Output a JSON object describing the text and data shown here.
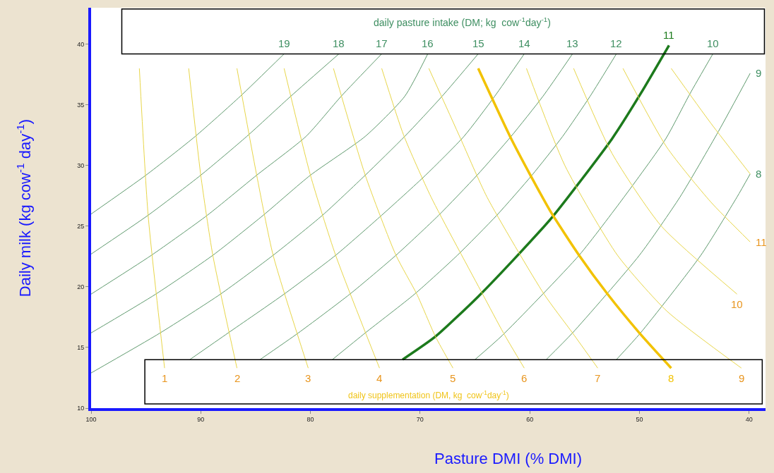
{
  "chart_data": {
    "type": "line",
    "xlabel": "Pasture DMI (% DMI)",
    "ylabel": "Daily milk (kg cow$^{-1}$ day$^{-1}$)",
    "annotations": [
      "daily pasture intake (DM; kg  cow$^{-1}$day$^{-1}$)",
      "daily supplementation (DM, kg  cow$^{-1}$day$^{-1}$)"
    ],
    "xlim": [
      100,
      38.5
    ],
    "ylim": [
      10,
      43
    ],
    "xticks": [
      100,
      90,
      80,
      70,
      60,
      50,
      40
    ],
    "yticks": [
      10,
      15,
      20,
      25,
      30,
      35,
      40
    ],
    "grid": false,
    "legend": false,
    "marker": "none",
    "line_style": "solid",
    "series": [
      {
        "name": "19",
        "color": "#5f9a6e",
        "x": [
          100,
          95.0,
          90.5,
          86.4,
          82.4
        ],
        "values": [
          26.0,
          29.2,
          32.4,
          35.7,
          39.2
        ]
      },
      {
        "name": "18",
        "color": "#5f9a6e",
        "x": [
          100,
          94.8,
          90.0,
          85.8,
          81.8,
          77.4
        ],
        "values": [
          22.7,
          25.9,
          29.2,
          32.4,
          35.7,
          39.2
        ]
      },
      {
        "name": "17",
        "color": "#5f9a6e",
        "x": [
          100,
          94.5,
          89.4,
          84.9,
          80.4,
          77.2,
          73.5
        ],
        "values": [
          19.4,
          22.6,
          25.9,
          29.2,
          32.4,
          35.7,
          39.2
        ]
      },
      {
        "name": "16",
        "color": "#5f9a6e",
        "x": [
          100,
          94.1,
          88.9,
          84.3,
          80.0,
          75.0,
          71.4,
          69.3
        ],
        "values": [
          16.2,
          19.4,
          22.6,
          25.9,
          29.2,
          32.4,
          35.7,
          39.2
        ]
      },
      {
        "name": "15",
        "color": "#5f9a6e",
        "x": [
          100,
          93.7,
          88.2,
          83.4,
          78.9,
          75.0,
          71.4,
          68.0,
          64.7
        ],
        "values": [
          12.9,
          16.2,
          19.4,
          22.6,
          25.9,
          29.2,
          32.4,
          35.7,
          39.2
        ]
      },
      {
        "name": "14",
        "color": "#5f9a6e",
        "x": [
          91.0,
          87.5,
          82.4,
          77.7,
          73.5,
          69.5,
          66.0,
          63.2,
          60.5
        ],
        "values": [
          14.0,
          16.2,
          19.4,
          22.6,
          25.9,
          29.2,
          32.4,
          35.7,
          39.2
        ]
      },
      {
        "name": "13",
        "color": "#5f9a6e",
        "x": [
          84.6,
          81.1,
          76.4,
          72.2,
          68.3,
          64.8,
          61.7,
          58.8,
          56.1
        ],
        "values": [
          14.0,
          16.2,
          19.4,
          22.6,
          25.9,
          29.2,
          32.4,
          35.7,
          39.2
        ]
      },
      {
        "name": "12",
        "color": "#5f9a6e",
        "x": [
          78.0,
          75.0,
          70.5,
          66.6,
          63.0,
          59.8,
          57.0,
          54.5,
          52.1
        ],
        "values": [
          14.0,
          16.2,
          19.4,
          22.6,
          25.9,
          29.2,
          32.4,
          35.7,
          39.2
        ]
      },
      {
        "name": "11",
        "color": "#1c7a1c",
        "x": [
          71.6,
          68.6,
          64.7,
          61.1,
          57.9,
          52.5,
          49.9,
          47.3
        ],
        "values": [
          14.0,
          15.9,
          19.2,
          22.6,
          25.8,
          32.2,
          35.9,
          39.9
        ]
      },
      {
        "name": "10",
        "color": "#5f9a6e",
        "x": [
          65.0,
          62.5,
          55.5,
          51.4,
          47.6,
          45.4,
          43.3
        ],
        "values": [
          14.0,
          16.0,
          22.6,
          27.4,
          32.2,
          35.9,
          39.2
        ]
      },
      {
        "name": "9",
        "color": "#5f9a6e",
        "x": [
          58.5,
          56.1,
          50.0,
          46.3,
          42.8,
          39.9
        ],
        "values": [
          14.0,
          16.2,
          22.6,
          27.4,
          32.8,
          37.6
        ]
      },
      {
        "name": "8",
        "color": "#5f9a6e",
        "x": [
          52.1,
          49.9,
          44.4,
          41.1,
          39.9
        ],
        "values": [
          14.0,
          16.2,
          22.6,
          27.4,
          29.3
        ]
      },
      {
        "name": "1",
        "color": "#e8d64a",
        "x": [
          95.6,
          94.8,
          93.3
        ],
        "values": [
          38.0,
          25.9,
          13.3
        ]
      },
      {
        "name": "2",
        "color": "#e8d64a",
        "x": [
          91.1,
          90.0,
          88.9,
          86.7
        ],
        "values": [
          38.0,
          29.2,
          22.6,
          13.3
        ]
      },
      {
        "name": "3",
        "color": "#e8d64a",
        "x": [
          86.7,
          84.9,
          83.4,
          80.2
        ],
        "values": [
          38.0,
          29.2,
          22.6,
          13.3
        ]
      },
      {
        "name": "4",
        "color": "#e8d64a",
        "x": [
          82.4,
          80.0,
          77.7,
          73.7
        ],
        "values": [
          38.0,
          29.2,
          22.6,
          13.3
        ]
      },
      {
        "name": "5",
        "color": "#e8d64a",
        "x": [
          77.9,
          75.0,
          72.2,
          70.3,
          68.6,
          67.0
        ],
        "values": [
          38.0,
          29.2,
          22.6,
          19.4,
          15.9,
          13.3
        ]
      },
      {
        "name": "6",
        "color": "#e8d64a",
        "x": [
          73.5,
          71.5,
          69.0,
          64.3,
          62.4,
          60.5
        ],
        "values": [
          38.0,
          32.5,
          27.4,
          19.4,
          16.2,
          13.3
        ]
      },
      {
        "name": "7",
        "color": "#e8d64a",
        "x": [
          69.2,
          66.3,
          63.9,
          58.7,
          56.1,
          53.8
        ],
        "values": [
          38.0,
          32.2,
          27.4,
          19.4,
          16.2,
          13.3
        ]
      },
      {
        "name": "8",
        "color": "#f2c200",
        "x": [
          64.7,
          61.8,
          60.0,
          58.1,
          55.5,
          52.9,
          50.0,
          47.1
        ],
        "values": [
          38.0,
          32.4,
          29.3,
          26.2,
          22.6,
          19.4,
          16.2,
          13.3
        ]
      },
      {
        "name": "9",
        "color": "#e8d64a",
        "x": [
          60.3,
          56.8,
          52.0,
          47.5,
          40.7
        ],
        "values": [
          38.0,
          30.0,
          22.6,
          18.0,
          13.3
        ]
      },
      {
        "name": "10",
        "color": "#e8d64a",
        "x": [
          56.0,
          52.5,
          48.0,
          41.1
        ],
        "values": [
          38.0,
          31.0,
          25.0,
          19.4
        ]
      },
      {
        "name": "11",
        "color": "#e8d64a",
        "x": [
          51.5,
          47.5,
          43.5,
          39.9
        ],
        "values": [
          38.0,
          31.5,
          27.0,
          23.7
        ]
      },
      {
        "color": "#e8d64a",
        "x": [
          47.1,
          43.5,
          39.9
        ],
        "values": [
          38.0,
          33.5,
          29.3
        ]
      }
    ]
  }
}
